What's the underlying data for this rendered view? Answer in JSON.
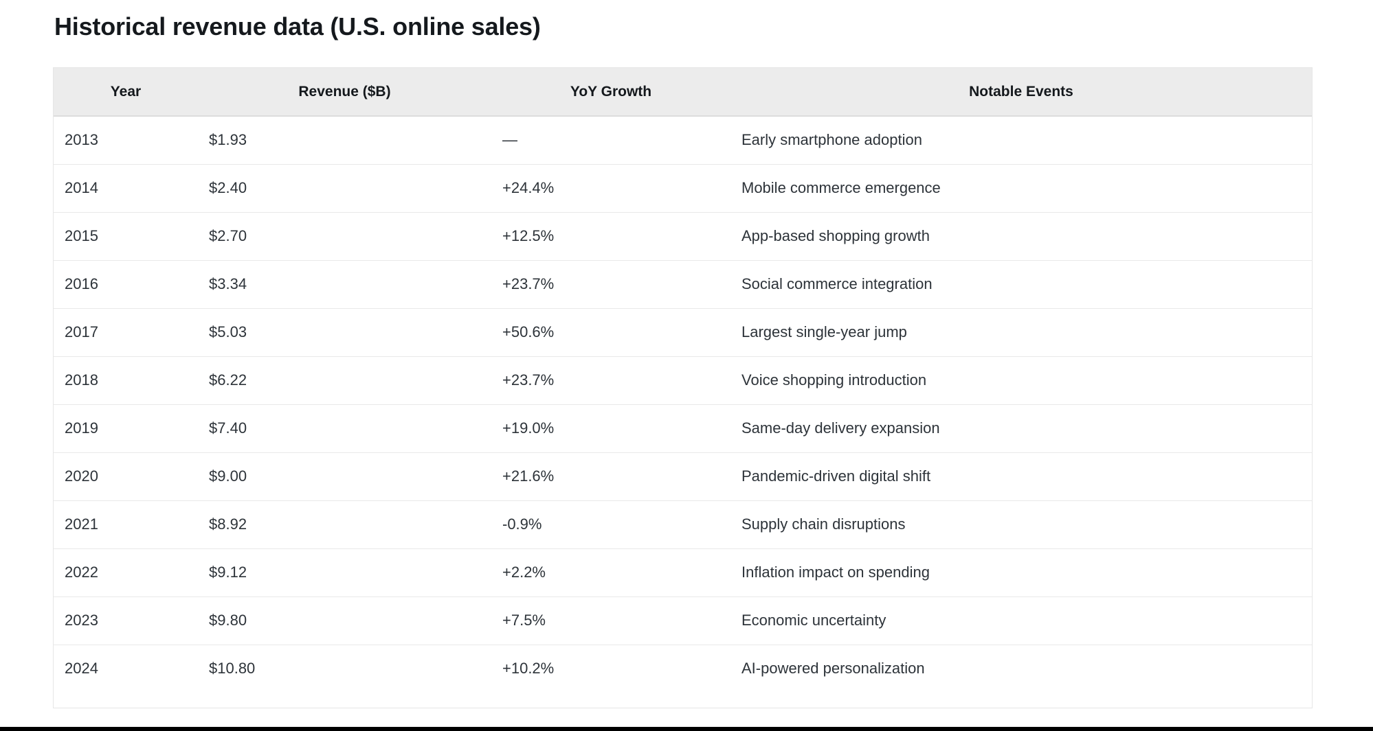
{
  "page": {
    "title": "Historical revenue data (U.S. online sales)"
  },
  "table": {
    "columns": [
      "Year",
      "Revenue ($B)",
      "YoY Growth",
      "Notable Events"
    ],
    "rows": [
      {
        "year": "2013",
        "revenue": "$1.93",
        "yoy": "—",
        "event": "Early smartphone adoption"
      },
      {
        "year": "2014",
        "revenue": "$2.40",
        "yoy": "+24.4%",
        "event": "Mobile commerce emergence"
      },
      {
        "year": "2015",
        "revenue": "$2.70",
        "yoy": "+12.5%",
        "event": "App-based shopping growth"
      },
      {
        "year": "2016",
        "revenue": "$3.34",
        "yoy": "+23.7%",
        "event": "Social commerce integration"
      },
      {
        "year": "2017",
        "revenue": "$5.03",
        "yoy": "+50.6%",
        "event": "Largest single-year jump"
      },
      {
        "year": "2018",
        "revenue": "$6.22",
        "yoy": "+23.7%",
        "event": "Voice shopping introduction"
      },
      {
        "year": "2019",
        "revenue": "$7.40",
        "yoy": "+19.0%",
        "event": "Same-day delivery expansion"
      },
      {
        "year": "2020",
        "revenue": "$9.00",
        "yoy": "+21.6%",
        "event": "Pandemic-driven digital shift"
      },
      {
        "year": "2021",
        "revenue": "$8.92",
        "yoy": "-0.9%",
        "event": "Supply chain disruptions"
      },
      {
        "year": "2022",
        "revenue": "$9.12",
        "yoy": "+2.2%",
        "event": "Inflation impact on spending"
      },
      {
        "year": "2023",
        "revenue": "$9.80",
        "yoy": "+7.5%",
        "event": "Economic uncertainty"
      },
      {
        "year": "2024",
        "revenue": "$10.80",
        "yoy": "+10.2%",
        "event": "AI-powered personalization"
      }
    ]
  },
  "chart_data": {
    "type": "table",
    "title": "Historical revenue data (U.S. online sales)",
    "categories": [
      "2013",
      "2014",
      "2015",
      "2016",
      "2017",
      "2018",
      "2019",
      "2020",
      "2021",
      "2022",
      "2023",
      "2024"
    ],
    "series": [
      {
        "name": "Revenue ($B)",
        "values": [
          1.93,
          2.4,
          2.7,
          3.34,
          5.03,
          6.22,
          7.4,
          9.0,
          8.92,
          9.12,
          9.8,
          10.8
        ]
      },
      {
        "name": "YoY Growth (%)",
        "values": [
          null,
          24.4,
          12.5,
          23.7,
          50.6,
          23.7,
          19.0,
          21.6,
          -0.9,
          2.2,
          7.5,
          10.2
        ]
      }
    ],
    "annotations": [
      "Early smartphone adoption",
      "Mobile commerce emergence",
      "App-based shopping growth",
      "Social commerce integration",
      "Largest single-year jump",
      "Voice shopping introduction",
      "Same-day delivery expansion",
      "Pandemic-driven digital shift",
      "Supply chain disruptions",
      "Inflation impact on spending",
      "Economic uncertainty",
      "AI-powered personalization"
    ]
  },
  "colors": {
    "header_background": "#ececec",
    "header_border": "#dcdcdc",
    "row_divider": "#e9e9e9",
    "table_border": "#e6e6e6",
    "title_text": "#15191d",
    "body_text": "#2d3339",
    "bottom_bar": "#000000"
  }
}
